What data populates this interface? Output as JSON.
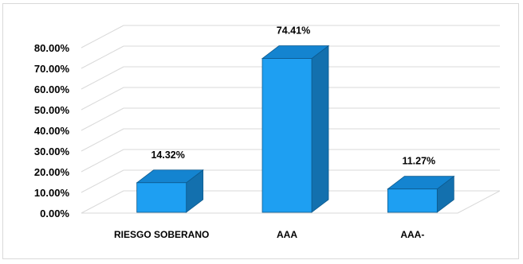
{
  "chart_data": {
    "type": "bar",
    "categories": [
      "RIESGO SOBERANO",
      "AAA",
      "AAA-"
    ],
    "values": [
      14.32,
      74.41,
      11.27
    ],
    "data_labels": [
      "14.32%",
      "74.41%",
      "11.27%"
    ],
    "ylim": [
      0,
      80
    ],
    "yticks": [
      "0.00%",
      "10.00%",
      "20.00%",
      "30.00%",
      "40.00%",
      "50.00%",
      "60.00%",
      "70.00%",
      "80.00%"
    ],
    "grid": true,
    "legend": "none",
    "three_d": true,
    "colors": {
      "front": "#1e9ff2",
      "side": "#1370ae",
      "top": "#1484d0",
      "edge": "#0d5a8e",
      "grid": "#d9d9d9"
    }
  }
}
